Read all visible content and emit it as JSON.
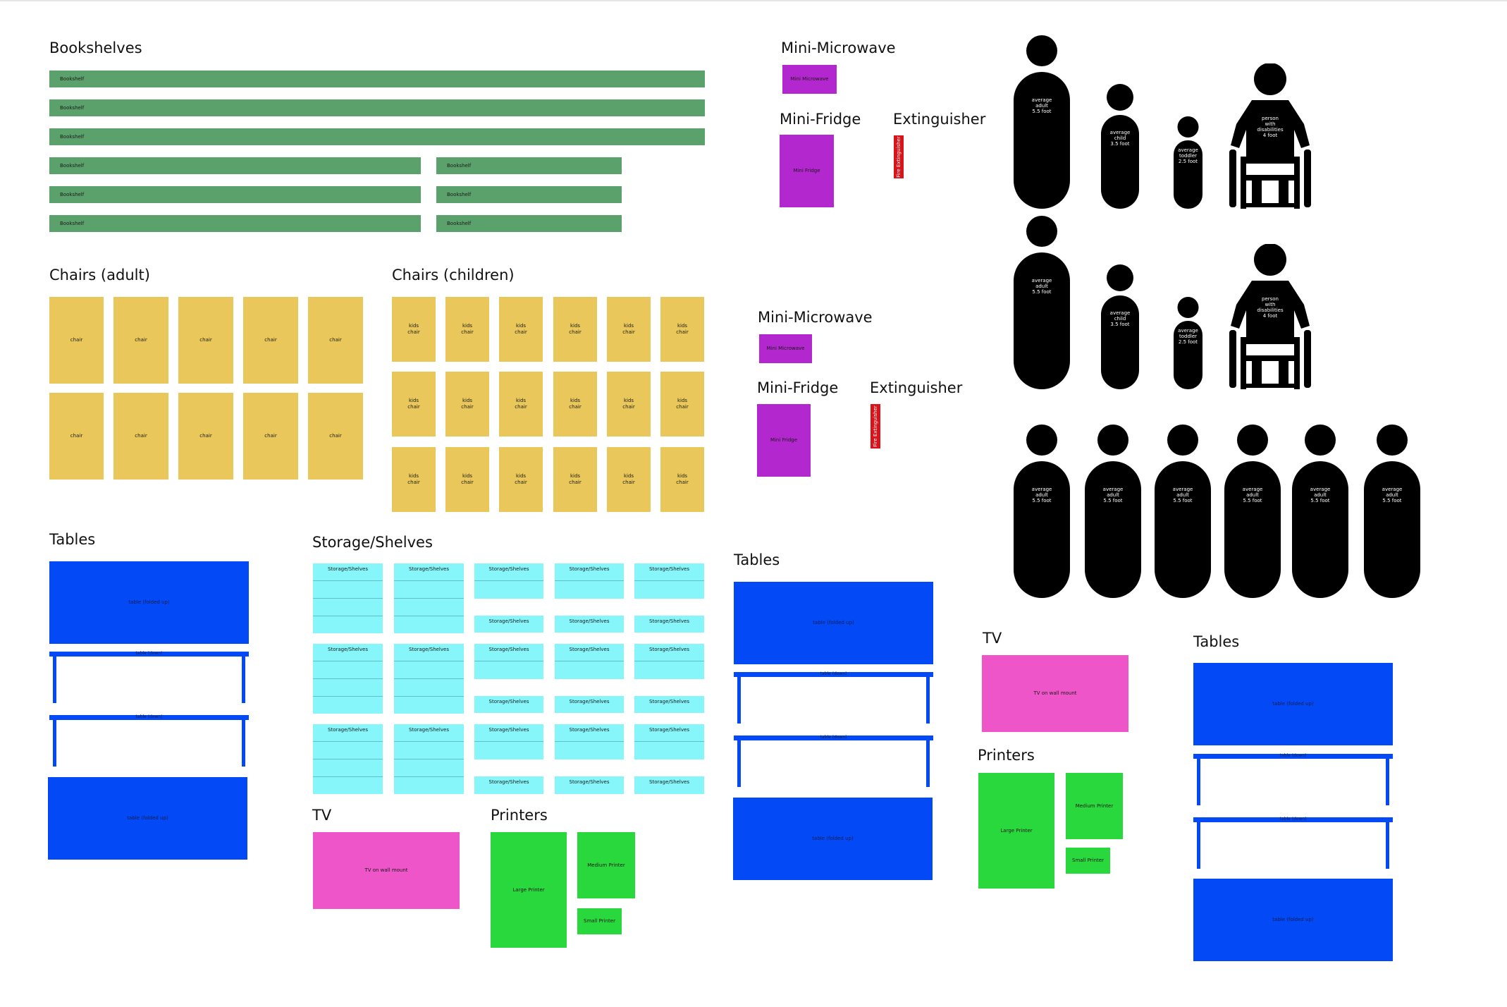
{
  "headings": {
    "bookshelves": "Bookshelves",
    "mini_microwave": "Mini-Microwave",
    "mini_fridge": "Mini-Fridge",
    "extinguisher": "Extinguisher",
    "chairs_adult": "Chairs (adult)",
    "chairs_children": "Chairs (children)",
    "tables": "Tables",
    "storage": "Storage/Shelves",
    "tv": "TV",
    "printers": "Printers"
  },
  "labels": {
    "bookshelf": "Bookshelf",
    "chair": "chair",
    "kids_chair": "kids\nchair",
    "table_folded": "table (folded up)",
    "table_down": "table (down)",
    "storage": "Storage/Shelves",
    "mini_microwave": "Mini Microwave",
    "mini_fridge": "Mini Fridge",
    "fire_extinguisher": "Fire Extinguisher",
    "tv": "TV on wall mount",
    "large_printer": "Large  Printer",
    "medium_printer": "Medium Printer",
    "small_printer": "Small Printer",
    "adult": "average\nadult\n5.5 foot",
    "child": "average\nchild\n3.5 foot",
    "toddler": "average\ntoddler\n2.5 foot",
    "disabled": "person\nwith\ndisabilities\n4 foot"
  },
  "colors": {
    "bookshelf": "#5ba16b",
    "chair": "#e9c75a",
    "table": "#0349f5",
    "storage": "#86f6fb",
    "microwave": "#b327cf",
    "extinguisher": "#d8141a",
    "tv": "#ee55c8",
    "printer": "#28d83c",
    "person": "#000000"
  }
}
